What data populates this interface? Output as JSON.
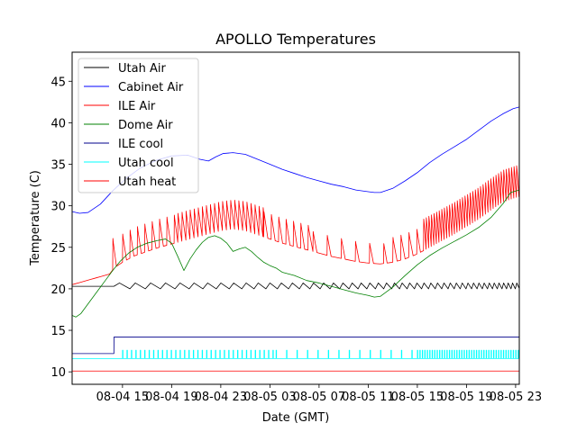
{
  "chart_data": {
    "type": "line",
    "title": "APOLLO Temperatures",
    "xlabel": "Date (GMT)",
    "ylabel": "Temperature (C)",
    "x_unit": "hours since 08-04 00:00 GMT",
    "xlim": [
      10.9,
      47.3
    ],
    "ylim": [
      8.5,
      48.5
    ],
    "xticks": [
      {
        "x": 15,
        "label": "08-04 15"
      },
      {
        "x": 19,
        "label": "08-04 19"
      },
      {
        "x": 23,
        "label": "08-04 23"
      },
      {
        "x": 27,
        "label": "08-05 03"
      },
      {
        "x": 31,
        "label": "08-05 07"
      },
      {
        "x": 35,
        "label": "08-05 11"
      },
      {
        "x": 39,
        "label": "08-05 15"
      },
      {
        "x": 43,
        "label": "08-05 19"
      },
      {
        "x": 47,
        "label": "08-05 23"
      }
    ],
    "yticks": [
      {
        "y": 10,
        "label": "10"
      },
      {
        "y": 15,
        "label": "15"
      },
      {
        "y": 20,
        "label": "20"
      },
      {
        "y": 25,
        "label": "25"
      },
      {
        "y": 30,
        "label": "30"
      },
      {
        "y": 35,
        "label": "35"
      },
      {
        "y": 40,
        "label": "40"
      },
      {
        "y": 45,
        "label": "45"
      }
    ],
    "legend_position": "top-left",
    "series": [
      {
        "name": "Utah Air",
        "color": "#000000",
        "style": "sawtooth",
        "x": [
          10.9,
          14.0,
          14.3,
          47.3
        ],
        "y": [
          20.3,
          20.3,
          20.3,
          20.3
        ],
        "teeth": {
          "start": 14.3,
          "end": 47.3,
          "period_start": 1.3,
          "period_end": 0.33,
          "low": 20.0,
          "high": 20.7
        }
      },
      {
        "name": "Cabinet Air",
        "color": "#0000ff",
        "x": [
          10.9,
          11.5,
          12.2,
          13.2,
          14.2,
          15.3,
          16.5,
          17.8,
          19.0,
          20.3,
          21.3,
          22.0,
          22.6,
          23.2,
          24.0,
          25.0,
          26.0,
          27.0,
          28.0,
          29.0,
          30.0,
          31.0,
          32.0,
          33.0,
          34.0,
          35.0,
          35.5,
          36.0,
          37.0,
          38.0,
          39.0,
          40.0,
          41.0,
          42.0,
          43.0,
          44.0,
          45.0,
          46.0,
          46.8,
          47.3
        ],
        "y": [
          29.3,
          29.1,
          29.2,
          30.2,
          31.8,
          33.3,
          34.6,
          35.5,
          36.0,
          36.1,
          35.6,
          35.4,
          35.9,
          36.3,
          36.4,
          36.2,
          35.6,
          35.0,
          34.4,
          33.9,
          33.4,
          33.0,
          32.6,
          32.3,
          31.9,
          31.7,
          31.6,
          31.6,
          32.1,
          33.0,
          34.0,
          35.2,
          36.2,
          37.1,
          38.0,
          39.1,
          40.2,
          41.1,
          41.7,
          41.9
        ]
      },
      {
        "name": "ILE Air",
        "color": "#ff0000",
        "style": "spiky",
        "x": [
          10.9,
          14.0,
          14.3,
          15.0,
          16.0,
          17.0,
          18.0,
          19.0,
          20.0,
          21.0,
          22.0,
          23.0,
          24.0,
          25.0,
          26.0,
          27.0,
          28.0,
          29.0,
          30.0,
          31.0,
          32.0,
          33.0,
          34.0,
          35.0,
          36.0,
          37.0,
          38.0,
          39.0,
          40.0,
          41.0,
          42.0,
          43.0,
          44.0,
          45.0,
          46.0,
          47.0,
          47.3
        ],
        "y": [
          20.5,
          21.8,
          22.5,
          23.2,
          24.0,
          24.5,
          25.0,
          25.4,
          25.8,
          26.2,
          26.6,
          27.0,
          27.2,
          27.0,
          26.5,
          26.0,
          25.5,
          25.1,
          24.7,
          24.3,
          23.9,
          23.6,
          23.3,
          23.1,
          23.0,
          23.2,
          23.6,
          24.2,
          25.0,
          25.8,
          26.6,
          27.5,
          28.4,
          29.5,
          30.5,
          31.0,
          31.1
        ],
        "spikes": [
          {
            "start": 14.2,
            "end": 14.2,
            "period": 1.0,
            "height": 3.8
          },
          {
            "start": 15.0,
            "end": 19.5,
            "period": 0.6,
            "height": 3.4
          },
          {
            "start": 19.5,
            "end": 26.5,
            "period": 0.33,
            "height": 3.5
          },
          {
            "start": 26.5,
            "end": 30.5,
            "period": 0.6,
            "height": 3.0
          },
          {
            "start": 30.5,
            "end": 37.0,
            "period": 1.15,
            "height": 2.4
          },
          {
            "start": 37.0,
            "end": 39.5,
            "period": 0.65,
            "height": 3.0
          },
          {
            "start": 39.5,
            "end": 47.3,
            "period": 0.21,
            "height": 3.8
          }
        ]
      },
      {
        "name": "Dome Air",
        "color": "#008000",
        "x": [
          10.9,
          11.2,
          11.6,
          12.0,
          12.5,
          13.0,
          13.6,
          14.2,
          14.8,
          15.5,
          16.2,
          17.0,
          17.8,
          18.5,
          19.0,
          19.5,
          20.0,
          20.5,
          21.0,
          21.5,
          22.0,
          22.5,
          23.0,
          23.5,
          24.0,
          24.5,
          25.0,
          25.5,
          26.0,
          26.5,
          27.0,
          27.5,
          28.0,
          29.0,
          30.0,
          31.0,
          32.0,
          33.0,
          34.0,
          35.0,
          35.5,
          36.0,
          37.0,
          38.0,
          39.0,
          40.0,
          41.0,
          42.0,
          43.0,
          44.0,
          45.0,
          46.0,
          46.6,
          47.3
        ],
        "y": [
          16.8,
          16.6,
          17.0,
          17.8,
          18.8,
          19.8,
          21.0,
          22.2,
          23.3,
          24.3,
          25.0,
          25.5,
          25.8,
          26.0,
          25.5,
          23.9,
          22.2,
          23.6,
          24.7,
          25.6,
          26.2,
          26.4,
          26.1,
          25.5,
          24.5,
          24.8,
          25.0,
          24.5,
          23.8,
          23.2,
          22.8,
          22.5,
          22.0,
          21.6,
          21.0,
          20.7,
          20.3,
          19.9,
          19.5,
          19.2,
          19.0,
          19.1,
          20.2,
          21.6,
          22.9,
          24.0,
          24.9,
          25.7,
          26.5,
          27.4,
          28.6,
          30.3,
          31.6,
          31.9
        ]
      },
      {
        "name": "ILE cool",
        "color": "#00008b",
        "style": "step",
        "x": [
          10.9,
          14.3,
          14.31,
          47.3
        ],
        "y": [
          12.2,
          12.2,
          14.2,
          14.2
        ]
      },
      {
        "name": "Utah cool",
        "color": "#00ffff",
        "style": "pulses",
        "baseline": 11.6,
        "pulse_high": 12.6,
        "x": [
          10.9,
          47.3
        ],
        "y": [
          11.6,
          11.6
        ],
        "pulse_groups": [
          {
            "start": 15.0,
            "end": 27.5,
            "period": 0.36
          },
          {
            "start": 27.5,
            "end": 39.0,
            "period": 0.85
          },
          {
            "start": 39.0,
            "end": 47.3,
            "period": 0.2
          }
        ]
      },
      {
        "name": "Utah heat",
        "color": "#ff0000",
        "x": [
          10.9,
          47.3
        ],
        "y": [
          10.1,
          10.1
        ]
      }
    ]
  }
}
